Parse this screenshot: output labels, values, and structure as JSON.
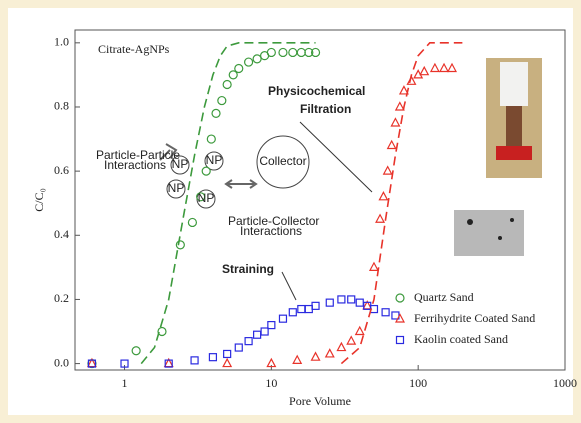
{
  "chart_data": {
    "type": "scatter",
    "xlabel": "Pore Volume",
    "ylabel": "C/C₀",
    "xscale": "log",
    "xlim": [
      0.46,
      1000
    ],
    "ylim": [
      -0.02,
      1.04
    ],
    "xticks": [
      1,
      10,
      100,
      1000
    ],
    "yticks": [
      {
        "value": 0,
        "label": "0.0"
      },
      {
        "value": 0.2,
        "label": "0.2"
      },
      {
        "value": 0.4,
        "label": "0.4"
      },
      {
        "value": 0.6,
        "label": "0.6"
      },
      {
        "value": 0.8,
        "label": "0.8"
      },
      {
        "value": 1.0,
        "label": "1.0"
      }
    ],
    "legend": "lower right",
    "series": [
      {
        "name": "Quartz Sand",
        "color": "#3d9a3d",
        "marker": "circle",
        "x": [
          0.6,
          1.2,
          1.8,
          2.4,
          2.9,
          3.3,
          3.6,
          3.9,
          4.2,
          4.6,
          5,
          5.5,
          6,
          7,
          8,
          9,
          10,
          12,
          14,
          16,
          18,
          20
        ],
        "values": [
          0,
          0.04,
          0.1,
          0.37,
          0.44,
          0.52,
          0.6,
          0.7,
          0.78,
          0.82,
          0.87,
          0.9,
          0.92,
          0.94,
          0.95,
          0.96,
          0.97,
          0.97,
          0.97,
          0.97,
          0.97,
          0.97
        ]
      },
      {
        "name": "Ferrihydrite Coated Sand",
        "color": "#e8332a",
        "marker": "triangle",
        "x": [
          0.6,
          2,
          5,
          10,
          15,
          20,
          25,
          30,
          35,
          40,
          45,
          50,
          55,
          58,
          62,
          66,
          70,
          75,
          80,
          90,
          100,
          110,
          130,
          150,
          170
        ],
        "values": [
          0,
          0,
          0,
          0,
          0.01,
          0.02,
          0.03,
          0.05,
          0.07,
          0.1,
          0.18,
          0.3,
          0.45,
          0.52,
          0.6,
          0.68,
          0.75,
          0.8,
          0.85,
          0.88,
          0.9,
          0.91,
          0.92,
          0.92,
          0.92
        ]
      },
      {
        "name": "Kaolin coated Sand",
        "color": "#2a2ae0",
        "marker": "square",
        "x": [
          0.6,
          1,
          2,
          3,
          4,
          5,
          6,
          7,
          8,
          9,
          10,
          12,
          14,
          16,
          18,
          20,
          25,
          30,
          35,
          40,
          45,
          50,
          60,
          70
        ],
        "values": [
          0,
          0,
          0,
          0.01,
          0.02,
          0.03,
          0.05,
          0.07,
          0.09,
          0.1,
          0.12,
          0.14,
          0.16,
          0.17,
          0.17,
          0.18,
          0.19,
          0.2,
          0.2,
          0.19,
          0.18,
          0.17,
          0.16,
          0.15
        ]
      },
      {
        "color": "#3d9a3d",
        "marker": "dashed-line",
        "x": [
          1.3,
          1.6,
          2,
          2.5,
          3,
          3.5,
          4,
          4.5,
          5,
          6,
          10,
          20
        ],
        "values": [
          0,
          0.05,
          0.2,
          0.45,
          0.65,
          0.8,
          0.9,
          0.96,
          0.99,
          1,
          1,
          1
        ]
      },
      {
        "color": "#e8332a",
        "marker": "dashed-line",
        "x": [
          30,
          40,
          50,
          60,
          70,
          80,
          90,
          100,
          120,
          200
        ],
        "values": [
          0,
          0.05,
          0.2,
          0.45,
          0.65,
          0.8,
          0.9,
          0.96,
          1,
          1
        ]
      }
    ],
    "annotations": [
      "Citrate-AgNPs",
      "Physicochemical",
      "Filtration",
      "Straining",
      "Particle-Particle",
      "Interactions",
      "NP",
      "NP",
      "NP",
      "NP",
      "Collector",
      "Particle-Collector",
      "Interactions"
    ]
  }
}
